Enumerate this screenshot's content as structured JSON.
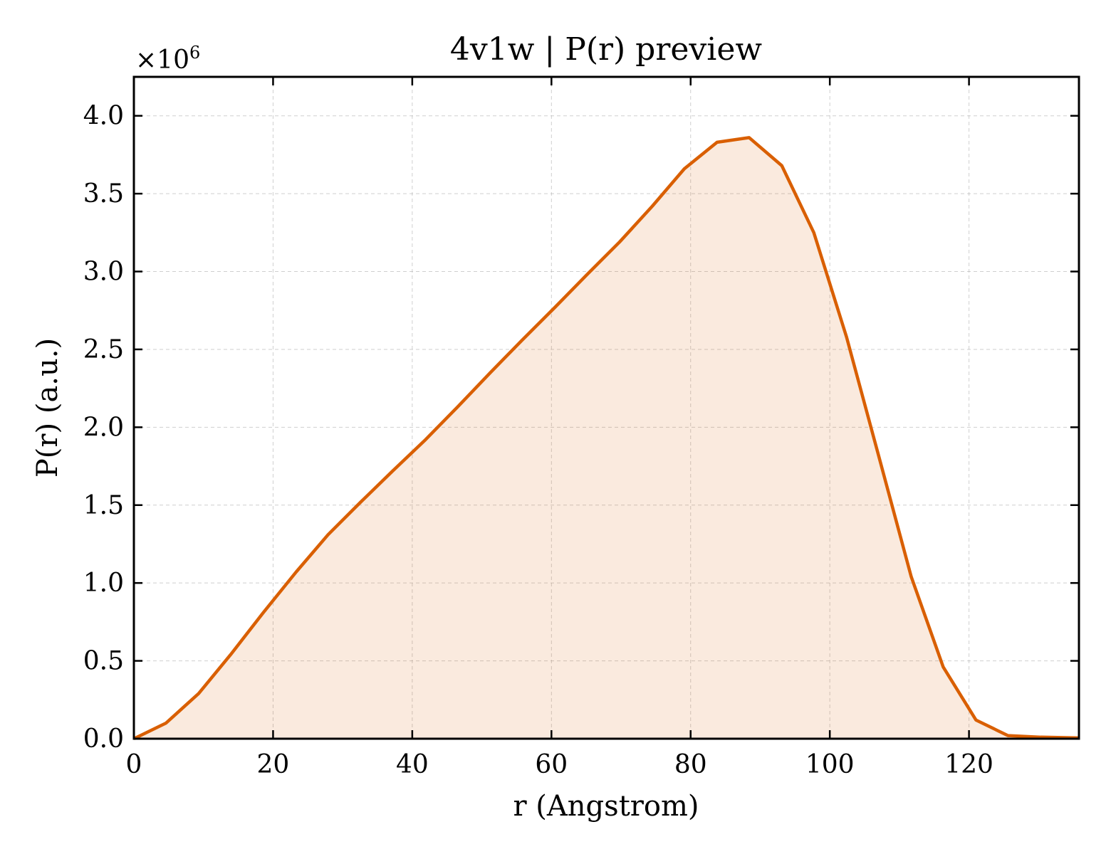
{
  "chart_data": {
    "type": "area",
    "title": "4v1w | P(r) preview",
    "xlabel": "r (Angstrom)",
    "ylabel": "P(r) (a.u.)",
    "y_multiplier_label": "×10",
    "y_multiplier_exponent": "6",
    "xlim": [
      0,
      135.8
    ],
    "ylim": [
      0,
      4.25
    ],
    "xticks": [
      0,
      20,
      40,
      60,
      80,
      100,
      120
    ],
    "xtick_labels": [
      "0",
      "20",
      "40",
      "60",
      "80",
      "100",
      "120"
    ],
    "yticks": [
      0,
      0.5,
      1.0,
      1.5,
      2.0,
      2.5,
      3.0,
      3.5,
      4.0
    ],
    "ytick_labels": [
      "0.0",
      "0.5",
      "1.0",
      "1.5",
      "2.0",
      "2.5",
      "3.0",
      "3.5",
      "4.0"
    ],
    "grid": true,
    "legend": "none",
    "series": [
      {
        "color": "#d95f02",
        "fill_color": "#d95f02",
        "fill_opacity": 0.13,
        "x": [
          0,
          4.6,
          9.3,
          13.9,
          18.6,
          23.3,
          27.9,
          32.6,
          37.2,
          41.9,
          46.5,
          51.2,
          55.8,
          60.5,
          65.1,
          69.8,
          74.5,
          79.1,
          83.8,
          88.4,
          93.1,
          97.7,
          102.4,
          107.0,
          111.7,
          116.3,
          121.0,
          125.6,
          130.3,
          135.8
        ],
        "y": [
          0.0,
          0.1,
          0.29,
          0.54,
          0.81,
          1.07,
          1.31,
          1.52,
          1.72,
          1.92,
          2.13,
          2.35,
          2.56,
          2.77,
          2.98,
          3.19,
          3.42,
          3.66,
          3.83,
          3.86,
          3.68,
          3.25,
          2.58,
          1.82,
          1.04,
          0.46,
          0.12,
          0.02,
          0.01,
          0.005
        ]
      }
    ]
  }
}
